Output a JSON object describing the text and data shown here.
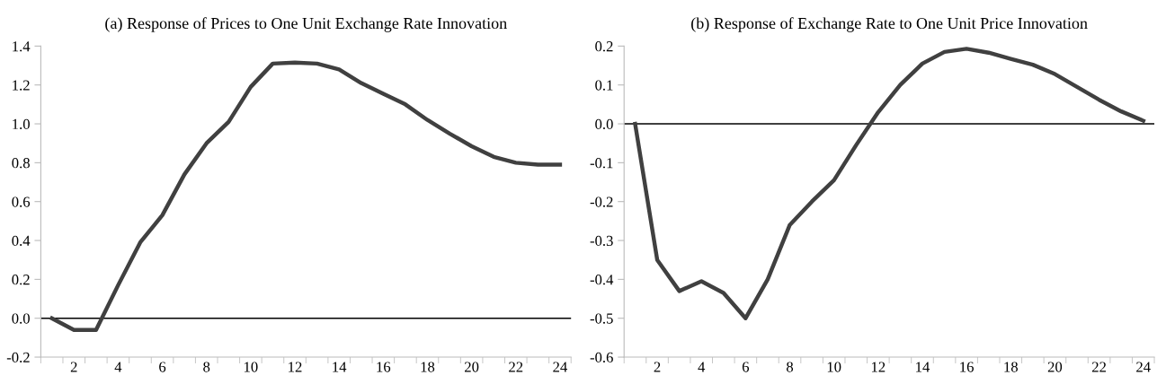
{
  "chart_data": [
    {
      "type": "line",
      "title": "(a) Response of Prices to One Unit Exchange Rate Innovation",
      "categories": [
        null,
        "2",
        null,
        "4",
        null,
        "6",
        null,
        "8",
        null,
        "10",
        null,
        "12",
        null,
        "14",
        null,
        "16",
        null,
        "18",
        null,
        "20",
        null,
        "22",
        null,
        "24"
      ],
      "series": [
        {
          "color": "#404040",
          "values": [
            0,
            -0.06,
            -0.06,
            0.17,
            0.39,
            0.53,
            0.74,
            0.9,
            1.01,
            1.19,
            1.31,
            1.315,
            1.31,
            1.28,
            1.21,
            1.155,
            1.1,
            1.02,
            0.95,
            0.885,
            0.83,
            0.8,
            0.79,
            0.79
          ]
        }
      ],
      "ylim": [
        -0.2,
        1.4
      ],
      "yticks": [
        {
          "value": -0.2,
          "label": "-0.2"
        },
        {
          "value": 0,
          "label": "0.0"
        },
        {
          "value": 0.2,
          "label": "0.2"
        },
        {
          "value": 0.4,
          "label": "0.4"
        },
        {
          "value": 0.6,
          "label": "0.6"
        },
        {
          "value": 0.8,
          "label": "0.8"
        },
        {
          "value": 1.0,
          "label": "1.0"
        },
        {
          "value": 1.2,
          "label": "1.2"
        },
        {
          "value": 1.4,
          "label": "1.4"
        }
      ],
      "ref_lines": [
        {
          "axis": "y",
          "value": 0,
          "color": "#000000"
        }
      ],
      "grid": false,
      "legend": false,
      "marker": "none",
      "line_style": "solid"
    },
    {
      "type": "line",
      "title": "(b) Response of Exchange Rate to One Unit Price Innovation",
      "categories": [
        null,
        "2",
        null,
        "4",
        null,
        "6",
        null,
        "8",
        null,
        "10",
        null,
        "12",
        null,
        "14",
        null,
        "16",
        null,
        "18",
        null,
        "20",
        null,
        "22",
        null,
        "24"
      ],
      "series": [
        {
          "color": "#404040",
          "values": [
            0,
            -0.35,
            -0.43,
            -0.405,
            -0.435,
            -0.5,
            -0.4,
            -0.26,
            -0.2,
            -0.145,
            -0.055,
            0.03,
            0.1,
            0.155,
            0.185,
            0.193,
            0.183,
            0.167,
            0.152,
            0.128,
            0.095,
            0.062,
            0.032,
            0.008
          ]
        }
      ],
      "ylim": [
        -0.6,
        0.2
      ],
      "yticks": [
        {
          "value": -0.6,
          "label": "-0.6"
        },
        {
          "value": -0.5,
          "label": "-0.5"
        },
        {
          "value": -0.4,
          "label": "-0.4"
        },
        {
          "value": -0.3,
          "label": "-0.3"
        },
        {
          "value": -0.2,
          "label": "-0.2"
        },
        {
          "value": -0.1,
          "label": "-0.1"
        },
        {
          "value": 0,
          "label": "0.0"
        },
        {
          "value": 0.1,
          "label": "0.1"
        },
        {
          "value": 0.2,
          "label": "0.2"
        }
      ],
      "ref_lines": [
        {
          "axis": "y",
          "value": 0,
          "color": "#000000"
        }
      ],
      "grid": false,
      "legend": false,
      "marker": "none",
      "line_style": "solid"
    }
  ]
}
